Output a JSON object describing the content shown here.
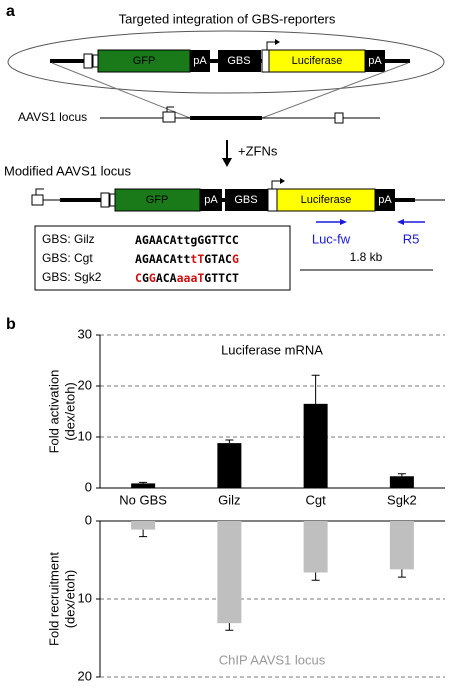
{
  "panel_a": {
    "label": "a",
    "title": "Targeted integration of GBS-reporters",
    "construct": {
      "gfp": "GFP",
      "pa1": "pA",
      "gbs": "GBS",
      "luciferase": "Luciferase",
      "pa2": "pA"
    },
    "locus_label": "AAVS1 locus",
    "step": "+ZFNs",
    "modified_label": "Modified AAVS1 locus",
    "modified": {
      "gfp": "GFP",
      "pa1": "pA",
      "gbs": "GBS",
      "luciferase": "Luciferase",
      "pa2": "pA"
    },
    "table": [
      {
        "label": "GBS: Gilz",
        "segments": [
          {
            "text": "AGAACAttgGGTTCC",
            "color": "#000000"
          }
        ]
      },
      {
        "label": "GBS: Cgt",
        "segments": [
          {
            "text": "AGAACAtt",
            "color": "#000000"
          },
          {
            "text": "tT",
            "color": "#d01010"
          },
          {
            "text": "GTAC",
            "color": "#000000"
          },
          {
            "text": "G",
            "color": "#d01010"
          }
        ]
      },
      {
        "label": "GBS: Sgk2",
        "segments": [
          {
            "text": "C",
            "color": "#d01010"
          },
          {
            "text": "G",
            "color": "#000000"
          },
          {
            "text": "G",
            "color": "#d01010"
          },
          {
            "text": "ACA",
            "color": "#000000"
          },
          {
            "text": "aaaT",
            "color": "#d01010"
          },
          {
            "text": "GTTCT",
            "color": "#000000"
          }
        ]
      }
    ],
    "primer_fw": "Luc-fw",
    "primer_rev": "R5",
    "scale": "1.8 kb"
  },
  "panel_b_label": "b",
  "chart_data": [
    {
      "type": "bar",
      "annotation": "Luciferase mRNA",
      "ylabel": [
        "Fold activation",
        "(dex/etoh)"
      ],
      "categories": [
        "No GBS",
        "Gilz",
        "Cgt",
        "Sgk2"
      ],
      "values": [
        0.9,
        8.8,
        16.5,
        2.3
      ],
      "errors": [
        0.2,
        0.6,
        5.6,
        0.5
      ],
      "color": "#000000",
      "ylim": [
        0,
        30
      ],
      "yticks": [
        0,
        10,
        20,
        30
      ],
      "grid": true
    },
    {
      "type": "bar",
      "annotation": "ChIP AAVS1 locus",
      "ylabel": [
        "Fold recruitment",
        "(dex/etoh)"
      ],
      "values": [
        1.1,
        13.1,
        6.6,
        6.2
      ],
      "errors": [
        0.9,
        0.9,
        1.0,
        1.0
      ],
      "color": "#bfbfbf",
      "ylim": [
        0,
        20
      ],
      "yticks": [
        0,
        10,
        20
      ],
      "inverted": true,
      "grid": true
    }
  ]
}
